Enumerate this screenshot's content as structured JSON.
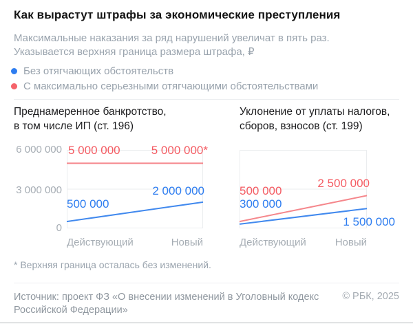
{
  "page": {
    "title": "Как вырастут штрафы за экономические преступления",
    "subtitle_line1": "Максимальные наказания за ряд нарушений увеличат в пять раз.",
    "subtitle_line2": "Указывается верхняя граница размера штрафа, ₽",
    "footnote": "* Верхняя граница осталась без изменений.",
    "source_line1": "Источник: проект ФЗ «О внесении изменений в Уголовный кодекс",
    "source_line2": "Российской Федерации»",
    "copyright": "© РБК, 2025"
  },
  "colors": {
    "blue": "#2e7df0",
    "red": "#f45c63",
    "grid": "#ebedef",
    "axis_text": "#a6adb4",
    "muted_text": "#99a3ad",
    "title_text": "#141414"
  },
  "legend": {
    "position": "top",
    "items": [
      {
        "label": "Без отягчающих обстоятельств",
        "color": "#2e7df0"
      },
      {
        "label": "С максимально серьезными отягчающими обстоятельствами",
        "color": "#f5636a"
      }
    ]
  },
  "chart_data": [
    {
      "type": "line",
      "title_line1": "Преднамеренное банкротство,",
      "title_line2": "в том числе ИП (ст. 196)",
      "categories": [
        "Действующий",
        "Новый"
      ],
      "ylim": [
        0,
        6000000
      ],
      "yticks": [
        0,
        3000000,
        6000000
      ],
      "ytick_labels": [
        "0",
        "3 000 000",
        "6 000 000"
      ],
      "grid": true,
      "series": [
        {
          "name": "Без отягчающих обстоятельств",
          "color": "#4189ee",
          "values": [
            500000,
            2000000
          ],
          "value_labels": [
            "500 000",
            "2 000 000"
          ]
        },
        {
          "name": "С максимально серьезными отягчающими обстоятельствами",
          "color": "#f5878c",
          "values": [
            5000000,
            5000000
          ],
          "value_labels": [
            "5 000 000",
            "5 000 000*"
          ]
        }
      ]
    },
    {
      "type": "line",
      "title_line1": "Уклонение от уплаты налогов,",
      "title_line2": "сборов, взносов (ст. 199)",
      "categories": [
        "Действующий",
        "Новый"
      ],
      "ylim": [
        0,
        6000000
      ],
      "yticks": [
        0,
        3000000,
        6000000
      ],
      "ytick_labels": [],
      "grid": true,
      "series": [
        {
          "name": "Без отягчающих обстоятельств",
          "color": "#4189ee",
          "values": [
            300000,
            1500000
          ],
          "value_labels": [
            "300 000",
            "1 500 000"
          ]
        },
        {
          "name": "С максимально серьезными отягчающими обстоятельствами",
          "color": "#f5878c",
          "values": [
            500000,
            2500000
          ],
          "value_labels": [
            "500 000",
            "2 500 000"
          ]
        }
      ]
    }
  ]
}
